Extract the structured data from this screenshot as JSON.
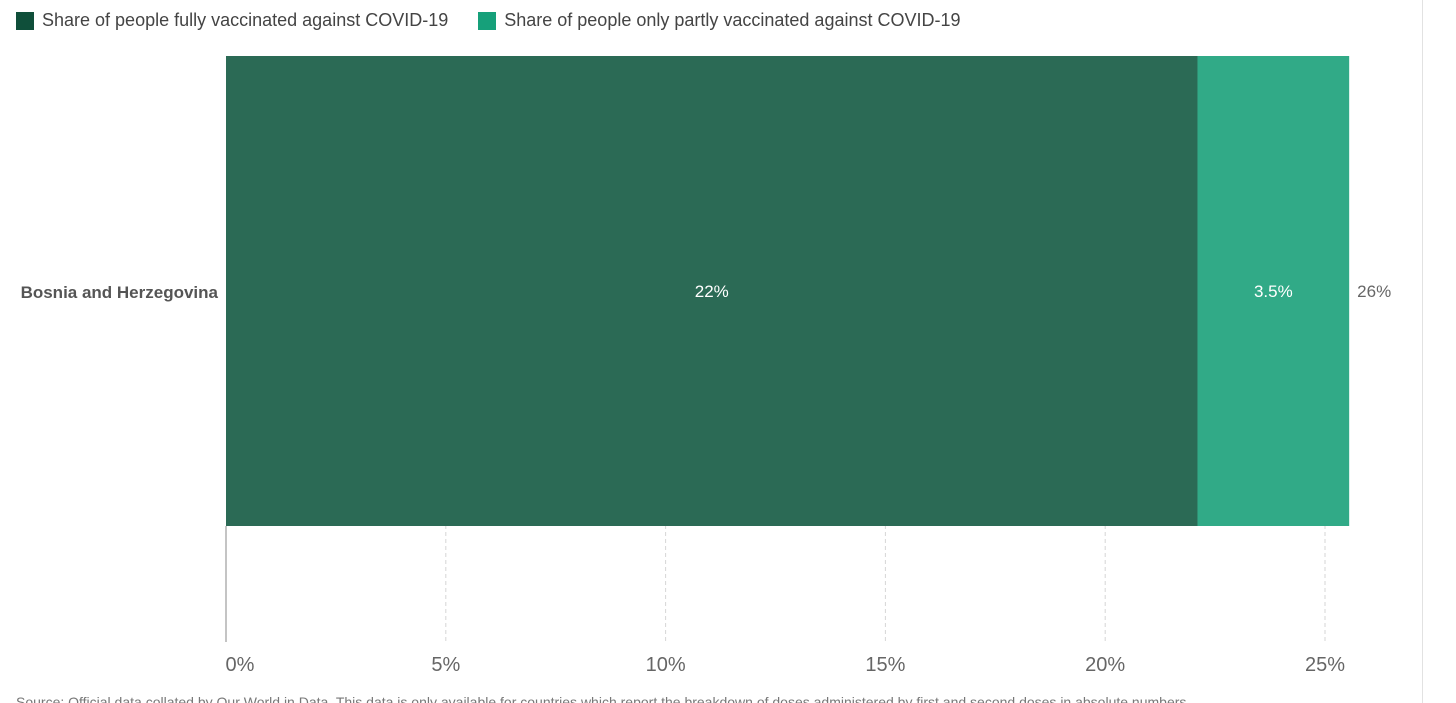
{
  "chart_data": {
    "type": "bar",
    "orientation": "horizontal",
    "stacked": true,
    "categories": [
      "Bosnia and Herzegovina"
    ],
    "series": [
      {
        "name": "Share of people fully vaccinated against COVID-19",
        "values": [
          22.1
        ],
        "labels": [
          "22%"
        ],
        "color": "#2b6a55",
        "legend_color": "#0f4f3a"
      },
      {
        "name": "Share of people only partly vaccinated against COVID-19",
        "values": [
          3.45
        ],
        "labels": [
          "3.5%"
        ],
        "color": "#31aa87",
        "legend_color": "#16a07a"
      }
    ],
    "totals": [
      "26%"
    ],
    "xlim": [
      0,
      25
    ],
    "xticks": [
      0,
      5,
      10,
      15,
      20,
      25
    ],
    "xtick_labels": [
      "0%",
      "5%",
      "10%",
      "15%",
      "20%",
      "25%"
    ],
    "grid": true,
    "legend_position": "top-left"
  },
  "source_note": "Source: Official data collated by Our World in Data. This data is only available for countries which report the breakdown of doses administered by first and second doses in absolute numbers."
}
